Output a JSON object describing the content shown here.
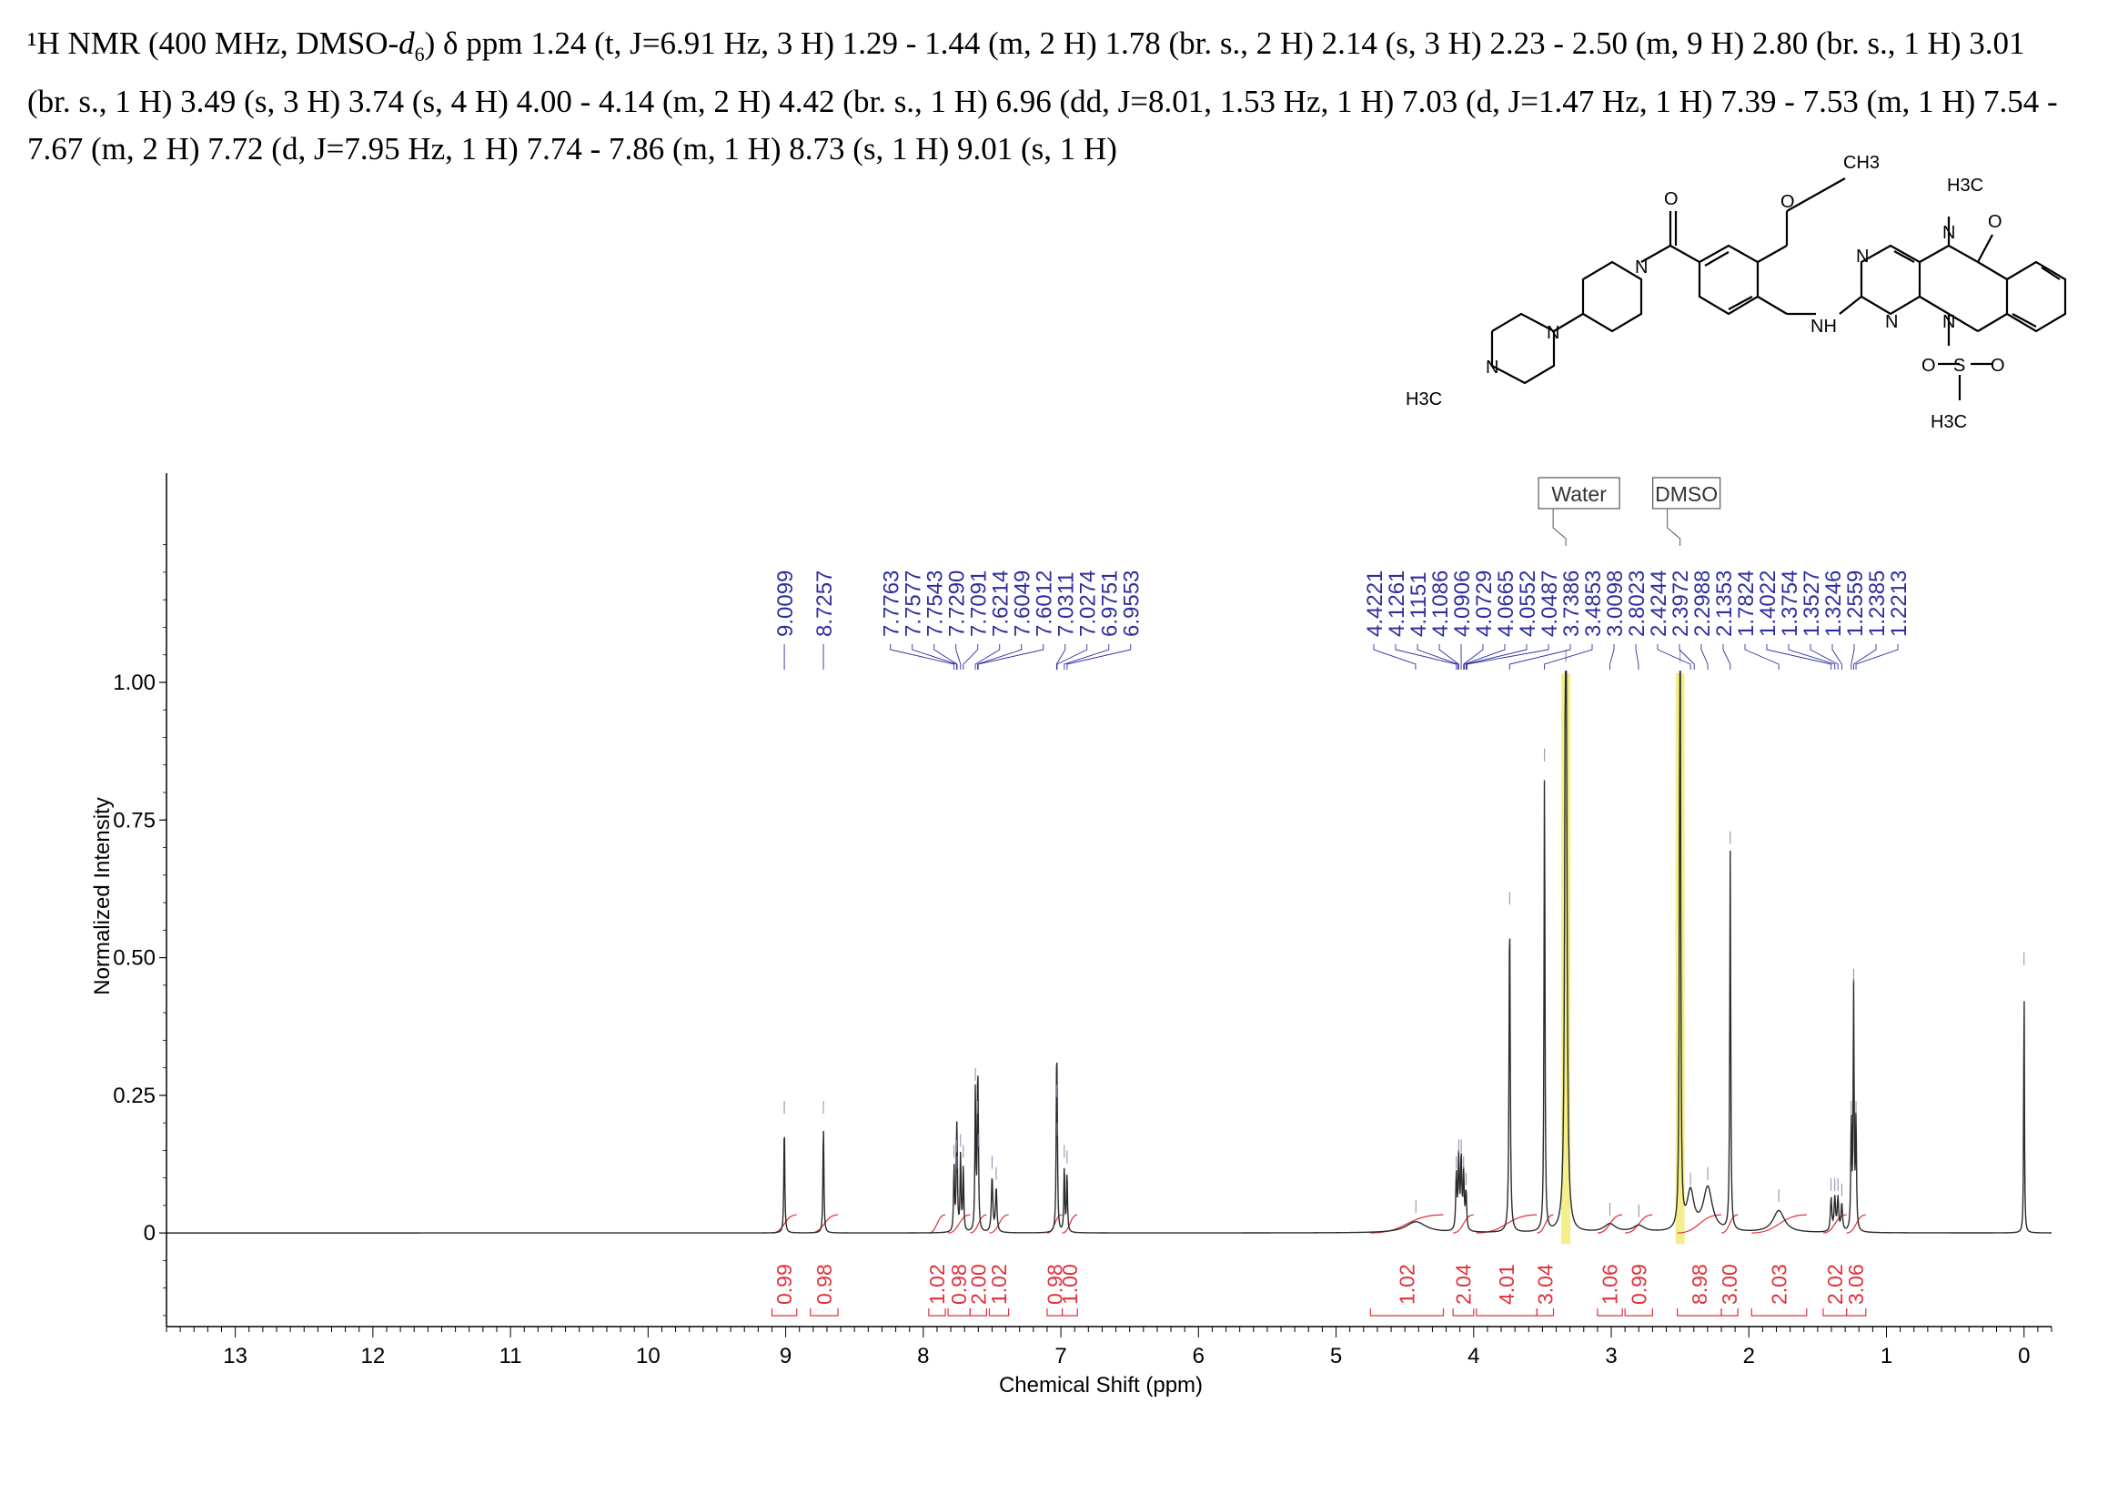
{
  "header": {
    "prefix": "¹H NMR (400 MHz, DMSO-",
    "solvent_d": "d",
    "solvent_sub": "6",
    "body": ") δ ppm 1.24 (t, J=6.91 Hz, 3 H) 1.29 - 1.44 (m, 2 H) 1.78 (br. s., 2 H) 2.14 (s, 3 H) 2.23 - 2.50 (m, 9 H) 2.80 (br. s., 1 H) 3.01 (br. s., 1 H) 3.49 (s, 3 H) 3.74 (s, 4 H) 4.00 - 4.14 (m, 2 H) 4.42 (br. s., 1 H) 6.96 (dd, J=8.01, 1.53 Hz, 1 H) 7.03 (d, J=1.47 Hz, 1 H) 7.39 - 7.53 (m, 1 H) 7.54 - 7.67 (m, 2 H) 7.72 (d, J=7.95 Hz, 1 H) 7.74 - 7.86 (m, 1 H) 8.73 (s, 1 H) 9.01 (s, 1 H)"
  },
  "structure_labels": {
    "ch3_top": "CH3",
    "nme_top": "H3C",
    "o_carbonyl_left": "O",
    "o_carbonyl_right": "O",
    "o_ether": "O",
    "n_lactam": "N",
    "n_pip": "N",
    "n_pz1": "N",
    "n_pz2": "N",
    "n_pyr1": "N",
    "n_pyr2": "N",
    "n_sulf": "N",
    "nh": "NH",
    "h3c_pz": "H3C",
    "s": "S",
    "o_s1": "O",
    "o_s2": "O",
    "h3c_s": "H3C"
  },
  "chart_data": {
    "type": "line",
    "title": "",
    "xlabel": "Chemical Shift (ppm)",
    "ylabel": "Normalized Intensity",
    "xlim": [
      13.5,
      -0.2
    ],
    "ylim": [
      -0.17,
      1.38
    ],
    "x_ticks": [
      13,
      12,
      11,
      10,
      9,
      8,
      7,
      6,
      5,
      4,
      3,
      2,
      1,
      0
    ],
    "y_ticks": [
      {
        "value": 0,
        "label": "0"
      },
      {
        "value": 0.25,
        "label": "0.25"
      },
      {
        "value": 0.5,
        "label": "0.50"
      },
      {
        "value": 0.75,
        "label": "0.75"
      },
      {
        "value": 1.0,
        "label": "1.00"
      }
    ],
    "solvent_labels": [
      {
        "text": "Water",
        "ppm": 3.33
      },
      {
        "text": "DMSO",
        "ppm": 2.5
      }
    ],
    "highlight_ppm": [
      3.33,
      2.5
    ],
    "peak_groups": [
      {
        "labels": [
          "9.0099"
        ],
        "ppm": [
          9.0099
        ]
      },
      {
        "labels": [
          "8.7257"
        ],
        "ppm": [
          8.7257
        ]
      },
      {
        "labels": [
          "7.7763",
          "7.7577",
          "7.7543",
          "7.7290",
          "7.7091",
          "7.6214",
          "7.6049",
          "7.6012",
          "7.0311",
          "7.0274",
          "6.9751",
          "6.9553"
        ],
        "ppm": [
          7.7763,
          7.7577,
          7.7543,
          7.729,
          7.7091,
          7.6214,
          7.6049,
          7.6012,
          7.0311,
          7.0274,
          6.9751,
          6.9553
        ]
      },
      {
        "labels": [
          "4.4221",
          "4.1261",
          "4.1151",
          "4.1086",
          "4.0906",
          "4.0729",
          "4.0665",
          "4.0552",
          "4.0487",
          "3.7386",
          "3.4853",
          "3.0098",
          "2.8023",
          "2.4244",
          "2.3972",
          "2.2988",
          "2.1353",
          "1.7824",
          "1.4022",
          "1.3754",
          "1.3527",
          "1.3246",
          "1.2559",
          "1.2385",
          "1.2213"
        ],
        "ppm": [
          4.4221,
          4.1261,
          4.1151,
          4.1086,
          4.0906,
          4.0729,
          4.0665,
          4.0552,
          4.0487,
          3.7386,
          3.4853,
          3.0098,
          2.8023,
          2.4244,
          2.3972,
          2.2988,
          2.1353,
          1.7824,
          1.4022,
          1.3754,
          1.3527,
          1.3246,
          1.2559,
          1.2385,
          1.2213
        ]
      }
    ],
    "integrals": [
      {
        "value": "0.99",
        "from": 9.1,
        "to": 8.92
      },
      {
        "value": "0.98",
        "from": 8.82,
        "to": 8.62
      },
      {
        "value": "1.02",
        "from": 7.96,
        "to": 7.84
      },
      {
        "value": "0.98",
        "from": 7.82,
        "to": 7.66
      },
      {
        "value": "2.00",
        "from": 7.66,
        "to": 7.54
      },
      {
        "value": "1.02",
        "from": 7.52,
        "to": 7.38
      },
      {
        "value": "0.98",
        "from": 7.1,
        "to": 6.99
      },
      {
        "value": "1.00",
        "from": 6.99,
        "to": 6.88
      },
      {
        "value": "1.02",
        "from": 4.75,
        "to": 4.22
      },
      {
        "value": "2.04",
        "from": 4.15,
        "to": 4.0
      },
      {
        "value": "4.01",
        "from": 3.98,
        "to": 3.54
      },
      {
        "value": "3.04",
        "from": 3.54,
        "to": 3.42
      },
      {
        "value": "1.06",
        "from": 3.1,
        "to": 2.92
      },
      {
        "value": "0.99",
        "from": 2.9,
        "to": 2.7
      },
      {
        "value": "8.98",
        "from": 2.52,
        "to": 2.2
      },
      {
        "value": "3.00",
        "from": 2.2,
        "to": 2.08
      },
      {
        "value": "2.03",
        "from": 1.98,
        "to": 1.58
      },
      {
        "value": "2.02",
        "from": 1.46,
        "to": 1.29
      },
      {
        "value": "3.06",
        "from": 1.29,
        "to": 1.15
      }
    ],
    "peaks": [
      {
        "ppm": 9.0099,
        "h": 0.2,
        "w": 0.004
      },
      {
        "ppm": 8.7257,
        "h": 0.2,
        "w": 0.004
      },
      {
        "ppm": 7.7763,
        "h": 0.12,
        "w": 0.004
      },
      {
        "ppm": 7.7577,
        "h": 0.13,
        "w": 0.004
      },
      {
        "ppm": 7.7543,
        "h": 0.1,
        "w": 0.004
      },
      {
        "ppm": 7.729,
        "h": 0.14,
        "w": 0.004
      },
      {
        "ppm": 7.7091,
        "h": 0.12,
        "w": 0.004
      },
      {
        "ppm": 7.6214,
        "h": 0.26,
        "w": 0.004
      },
      {
        "ppm": 7.6049,
        "h": 0.2,
        "w": 0.004
      },
      {
        "ppm": 7.6012,
        "h": 0.14,
        "w": 0.004
      },
      {
        "ppm": 7.5,
        "h": 0.1,
        "w": 0.006
      },
      {
        "ppm": 7.47,
        "h": 0.08,
        "w": 0.006
      },
      {
        "ppm": 7.0311,
        "h": 0.23,
        "w": 0.004
      },
      {
        "ppm": 7.0274,
        "h": 0.16,
        "w": 0.004
      },
      {
        "ppm": 6.9751,
        "h": 0.12,
        "w": 0.004
      },
      {
        "ppm": 6.9553,
        "h": 0.11,
        "w": 0.004
      },
      {
        "ppm": 4.42,
        "h": 0.02,
        "w": 0.09
      },
      {
        "ppm": 4.1261,
        "h": 0.1,
        "w": 0.005
      },
      {
        "ppm": 4.1086,
        "h": 0.13,
        "w": 0.005
      },
      {
        "ppm": 4.0906,
        "h": 0.13,
        "w": 0.005
      },
      {
        "ppm": 4.0729,
        "h": 0.1,
        "w": 0.005
      },
      {
        "ppm": 4.0552,
        "h": 0.07,
        "w": 0.005
      },
      {
        "ppm": 3.7386,
        "h": 0.58,
        "w": 0.005
      },
      {
        "ppm": 3.4853,
        "h": 0.84,
        "w": 0.004
      },
      {
        "ppm": 3.33,
        "h": 1.6,
        "w": 0.007
      },
      {
        "ppm": 3.01,
        "h": 0.015,
        "w": 0.05
      },
      {
        "ppm": 2.8,
        "h": 0.012,
        "w": 0.05
      },
      {
        "ppm": 2.5,
        "h": 1.6,
        "w": 0.004
      },
      {
        "ppm": 2.4244,
        "h": 0.07,
        "w": 0.03
      },
      {
        "ppm": 2.2988,
        "h": 0.08,
        "w": 0.04
      },
      {
        "ppm": 2.1353,
        "h": 0.69,
        "w": 0.004
      },
      {
        "ppm": 1.7824,
        "h": 0.04,
        "w": 0.05
      },
      {
        "ppm": 1.4022,
        "h": 0.06,
        "w": 0.006
      },
      {
        "ppm": 1.3754,
        "h": 0.06,
        "w": 0.006
      },
      {
        "ppm": 1.3527,
        "h": 0.06,
        "w": 0.006
      },
      {
        "ppm": 1.3246,
        "h": 0.05,
        "w": 0.006
      },
      {
        "ppm": 1.2559,
        "h": 0.2,
        "w": 0.004
      },
      {
        "ppm": 1.2385,
        "h": 0.44,
        "w": 0.004
      },
      {
        "ppm": 1.2213,
        "h": 0.2,
        "w": 0.004
      },
      {
        "ppm": 0.0,
        "h": 0.47,
        "w": 0.003
      }
    ],
    "colors": {
      "spectrum": "#2b2b2b",
      "peak_labels": "#2e2e9e",
      "integrals": "#e0303a",
      "highlight": "#f3ef8a",
      "axis": "#000000"
    }
  }
}
